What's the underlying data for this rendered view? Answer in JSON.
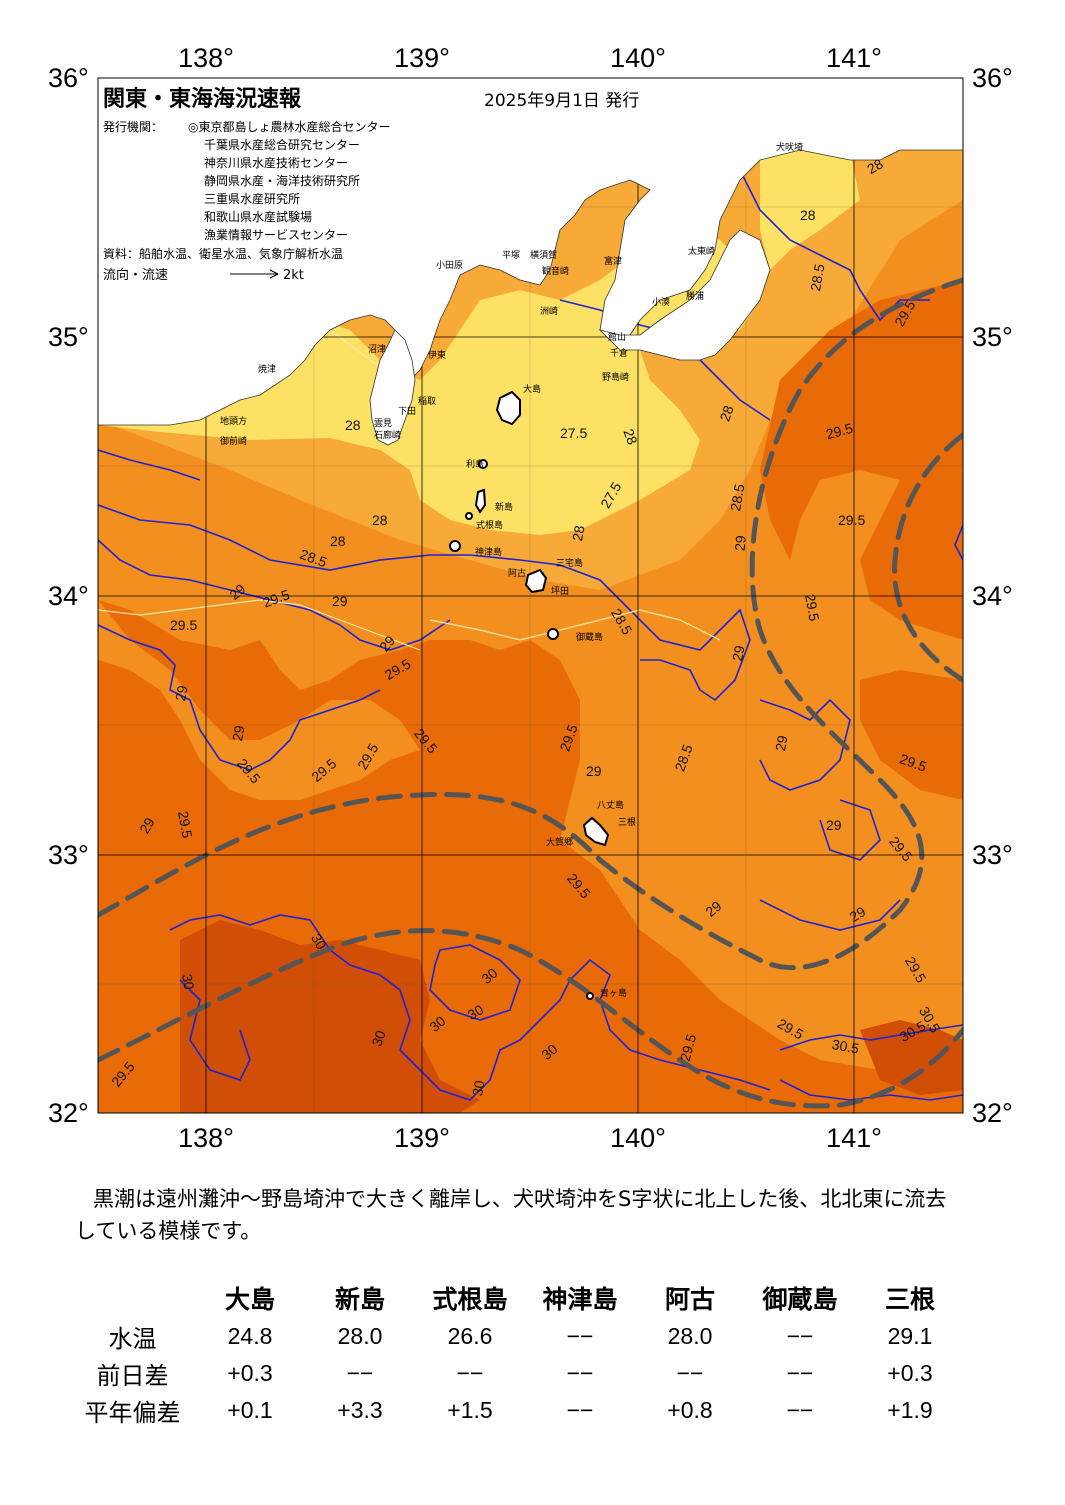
{
  "map": {
    "title": "関東・東海海況速報",
    "date": "2025年9月1日 発行",
    "issuers_label": "発行機関：",
    "issuers": [
      "◎東京都島しょ農林水産総合センター",
      "千葉県水産総合研究センター",
      "神奈川県水産技術センター",
      "静岡県水産・海洋技術研究所",
      "三重県水産研究所",
      "和歌山県水産試験場",
      "漁業情報サービスセンター"
    ],
    "source": "資料：船舶水温、衛星水温、気象庁解析水温",
    "flow_label": "流向・流速",
    "flow_scale": "2kt",
    "lon_labels": [
      "138°",
      "139°",
      "140°",
      "141°"
    ],
    "lat_labels": [
      "36°",
      "35°",
      "34°",
      "33°",
      "32°"
    ],
    "lon_range": [
      137.5,
      141.5
    ],
    "lat_range": [
      32,
      36
    ],
    "colors": {
      "t27": "#fde164",
      "t28": "#f7aa37",
      "t29": "#f28f1f",
      "t30": "#e96b07",
      "t31": "#d14e06",
      "land": "#ffffff",
      "isotherm_major": "#1e22d6",
      "isotherm_minor": "#fde9a8",
      "kuroshio": "#555555",
      "grid": "#000000"
    },
    "places": [
      "大島",
      "利島",
      "新島",
      "式根島",
      "神津島",
      "三宅島",
      "阿古",
      "坪田",
      "御蔵島",
      "八丈島",
      "三根",
      "大賀郷",
      "青ヶ島",
      "小田原",
      "平塚",
      "横須賀",
      "観音崎",
      "富津",
      "洲崎",
      "館山",
      "千倉",
      "野島崎",
      "勝浦",
      "小湊",
      "太東崎",
      "犬吠埼",
      "伊東",
      "稲取",
      "下田",
      "石廊崎",
      "雲見",
      "沼津",
      "焼津",
      "御前崎",
      "地頭方"
    ],
    "isotherm_labels": [
      "27.5",
      "28",
      "28.5",
      "29",
      "29.5",
      "30",
      "30.5"
    ]
  },
  "summary": "黒潮は遠州灘沖～野島埼沖で大きく離岸し、犬吠埼沖をS字状に北上した後、北北東に流去している模様です。",
  "table": {
    "stations": [
      "大島",
      "新島",
      "式根島",
      "神津島",
      "阿古",
      "御蔵島",
      "三根"
    ],
    "rows": [
      {
        "label": "水温",
        "values": [
          "24.8",
          "28.0",
          "26.6",
          "−−",
          "28.0",
          "−−",
          "29.1"
        ]
      },
      {
        "label": "前日差",
        "values": [
          "+0.3",
          "−−",
          "−−",
          "−−",
          "−−",
          "−−",
          "+0.3"
        ]
      },
      {
        "label": "平年偏差",
        "values": [
          "+0.1",
          "+3.3",
          "+1.5",
          "−−",
          "+0.8",
          "−−",
          "+1.9"
        ]
      }
    ]
  }
}
